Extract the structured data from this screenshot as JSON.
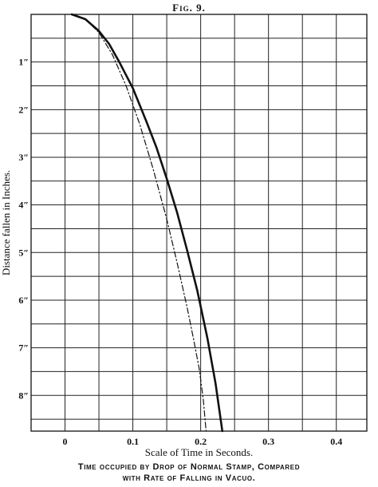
{
  "figure": {
    "title": "Fig. 9.",
    "caption_line1": "Time occupied by Drop of Normal Stamp, Compared",
    "caption_line2": "with Rate of Falling in Vacuo."
  },
  "chart_data": {
    "type": "line",
    "xlabel": "Scale of Time in Seconds.",
    "ylabel": "Distance fallen in Inches.",
    "xlim": [
      -0.05,
      0.445
    ],
    "ylim": [
      0,
      8.75
    ],
    "y_inverted": true,
    "grid": true,
    "x_ticks": [
      0,
      0.1,
      0.2,
      0.3,
      0.4
    ],
    "x_tick_labels": [
      "0",
      "0.1",
      "0.2",
      "0.3",
      "0.4"
    ],
    "y_ticks": [
      1,
      2,
      3,
      4,
      5,
      6,
      7,
      8
    ],
    "y_tick_labels": [
      "1″",
      "2″",
      "3″",
      "4″",
      "5″",
      "6″",
      "7″",
      "8″"
    ],
    "series": [
      {
        "style": "solid",
        "x": [
          0.01,
          0.03,
          0.05,
          0.065,
          0.08,
          0.1,
          0.12,
          0.135,
          0.15,
          0.165,
          0.18,
          0.195,
          0.21,
          0.222,
          0.232
        ],
        "y": [
          0,
          0.1,
          0.35,
          0.62,
          1.0,
          1.55,
          2.25,
          2.8,
          3.45,
          4.15,
          4.95,
          5.8,
          6.8,
          7.75,
          8.75
        ]
      },
      {
        "style": "dash-dot",
        "x": [
          0.01,
          0.03,
          0.05,
          0.07,
          0.09,
          0.11,
          0.13,
          0.15,
          0.165,
          0.18,
          0.19,
          0.198,
          0.204,
          0.208
        ],
        "y": [
          0,
          0.1,
          0.38,
          0.85,
          1.5,
          2.3,
          3.25,
          4.3,
          5.2,
          6.15,
          6.85,
          7.45,
          8.1,
          8.75
        ]
      }
    ]
  }
}
